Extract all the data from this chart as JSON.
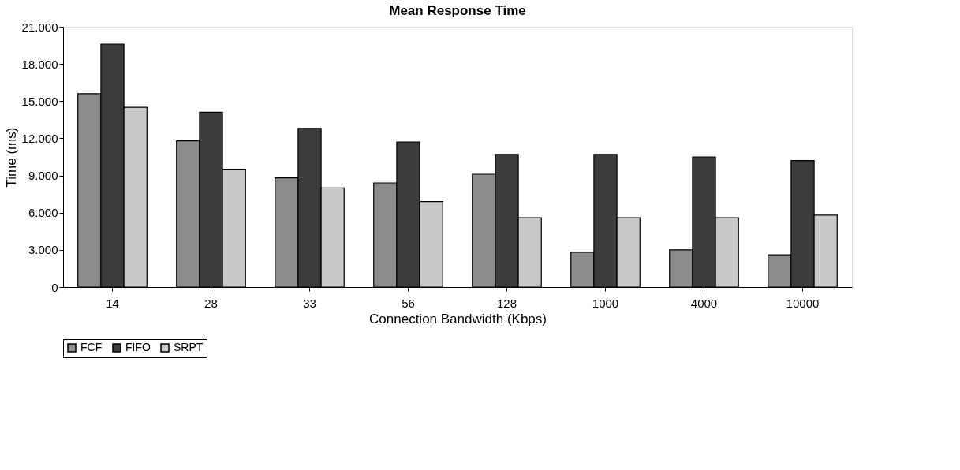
{
  "chart_data": {
    "type": "bar",
    "title": "Mean Response Time",
    "xlabel": "Connection Bandwidth (Kbps)",
    "ylabel": "Time (ms)",
    "categories": [
      "14",
      "28",
      "33",
      "56",
      "128",
      "1000",
      "4000",
      "10000"
    ],
    "series": [
      {
        "name": "FCF",
        "color": "#8c8c8c",
        "values": [
          15600,
          11800,
          8800,
          8400,
          9100,
          2800,
          3000,
          2600
        ]
      },
      {
        "name": "FIFO",
        "color": "#3c3c3c",
        "values": [
          19600,
          14100,
          12800,
          11700,
          10700,
          10700,
          10500,
          10200
        ]
      },
      {
        "name": "SRPT",
        "color": "#c8c8c8",
        "values": [
          14500,
          9500,
          8000,
          6900,
          5600,
          5600,
          5600,
          5800
        ]
      }
    ],
    "ylim": [
      0,
      21000
    ],
    "yticks": [
      0,
      {
        "value": 3000,
        "label": "3.000"
      },
      {
        "value": 6000,
        "label": "6.000"
      },
      {
        "value": 9000,
        "label": "9.000"
      },
      {
        "value": 12000,
        "label": "12.000"
      },
      {
        "value": 15000,
        "label": "15.000"
      },
      {
        "value": 18000,
        "label": "18.000"
      },
      {
        "value": 21000,
        "label": "21.000"
      }
    ],
    "grid": false,
    "legend": "bottom"
  }
}
